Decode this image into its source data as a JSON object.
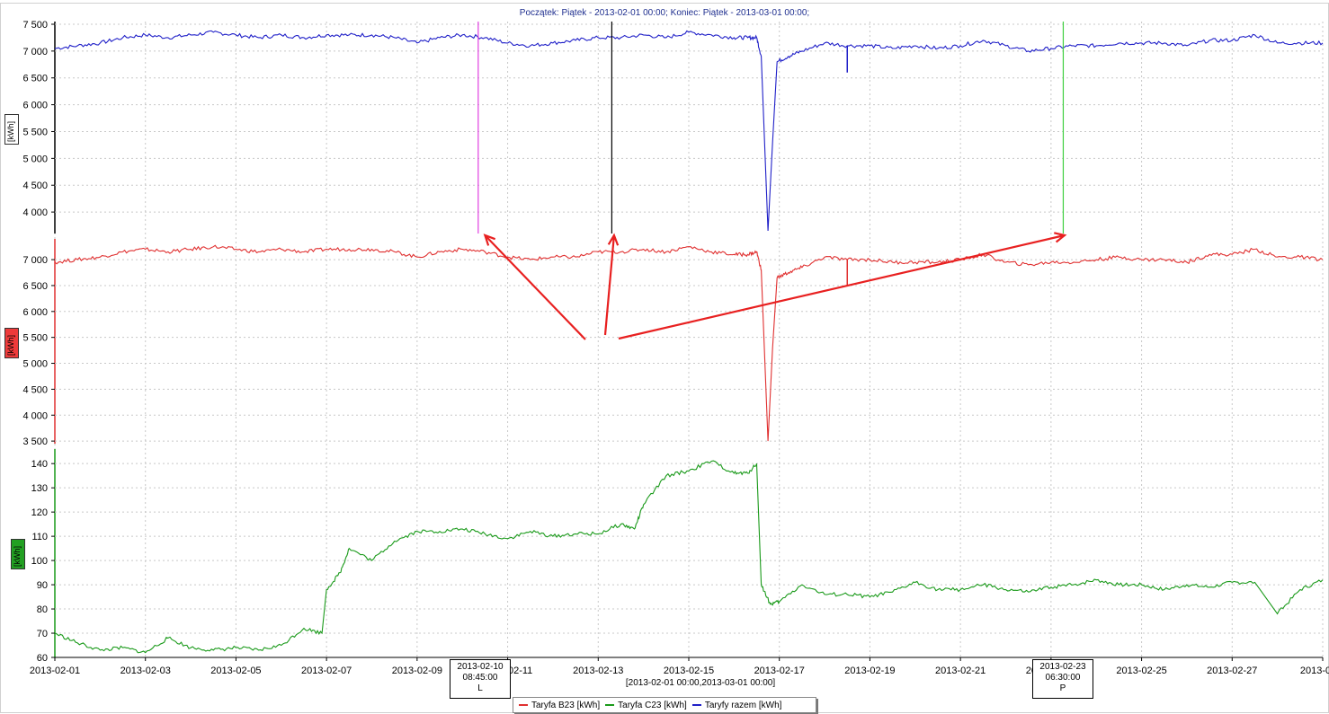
{
  "header": {
    "title": "Początek: Piątek - 2013-02-01 00:00; Koniec: Piątek - 2013-03-01 00:00;"
  },
  "x_axis": {
    "tick_labels": [
      "2013-02-01",
      "2013-02-03",
      "2013-02-05",
      "2013-02-07",
      "2013-02-09",
      "2013-02-11",
      "2013-02-13",
      "2013-02-15",
      "2013-02-17",
      "2013-02-19",
      "2013-02-21",
      "2013-02-23",
      "2013-02-25",
      "2013-02-27",
      "2013-03-0"
    ],
    "range_label": "[2013-02-01 00:00,2013-03-01 00:00]"
  },
  "cursors": [
    {
      "date": "2013-02-10",
      "time": "08:45:00",
      "tag": "L"
    },
    {
      "date": "2013-02-23",
      "time": "06:30:00",
      "tag": "P"
    }
  ],
  "legend": {
    "items": [
      {
        "label": "Taryfa B23 [kWh]",
        "color": "#e03030"
      },
      {
        "label": "Taryfa C23 [kWh]",
        "color": "#1a9a1a"
      },
      {
        "label": "Taryfy razem [kWh]",
        "color": "#2020c8"
      }
    ]
  },
  "colors": {
    "blue": "#2020c8",
    "red": "#e03030",
    "green": "#1a9a1a",
    "grid": "#c8c8c8",
    "magenta_marker": "#e040e0",
    "black_marker": "#000000",
    "green_marker": "#40d040",
    "arrow": "#e82020"
  },
  "chart_data": [
    {
      "type": "line",
      "panel": "top",
      "ylabel": "[kWh]",
      "ylim": [
        3600,
        7550
      ],
      "yticks": [
        "7 500",
        "7 000",
        "6 500",
        "6 000",
        "5 500",
        "5 000",
        "4 500",
        "4 000"
      ],
      "xlim_days": [
        0,
        28
      ],
      "x_start": "2013-02-01",
      "series": [
        {
          "name": "Taryfy razem [kWh]",
          "color": "#2020c8",
          "points": [
            [
              0,
              7050
            ],
            [
              0.5,
              7100
            ],
            [
              1,
              7150
            ],
            [
              1.5,
              7250
            ],
            [
              2,
              7300
            ],
            [
              2.5,
              7250
            ],
            [
              3,
              7300
            ],
            [
              3.5,
              7350
            ],
            [
              4,
              7300
            ],
            [
              4.5,
              7250
            ],
            [
              5,
              7300
            ],
            [
              5.5,
              7250
            ],
            [
              6,
              7300
            ],
            [
              6.5,
              7300
            ],
            [
              7,
              7300
            ],
            [
              7.5,
              7250
            ],
            [
              8,
              7150
            ],
            [
              8.5,
              7250
            ],
            [
              9,
              7300
            ],
            [
              9.5,
              7250
            ],
            [
              10,
              7150
            ],
            [
              10.5,
              7100
            ],
            [
              11,
              7150
            ],
            [
              11.5,
              7200
            ],
            [
              12,
              7250
            ],
            [
              12.5,
              7250
            ],
            [
              13,
              7300
            ],
            [
              13.5,
              7250
            ],
            [
              14,
              7350
            ],
            [
              14.5,
              7300
            ],
            [
              15,
              7250
            ],
            [
              15.3,
              7250
            ],
            [
              15.5,
              7250
            ],
            [
              15.6,
              6900
            ],
            [
              15.75,
              3650
            ],
            [
              15.85,
              5300
            ],
            [
              15.95,
              6800
            ],
            [
              16.2,
              6900
            ],
            [
              16.5,
              7000
            ],
            [
              17,
              7150
            ],
            [
              17.5,
              7100
            ],
            [
              18,
              7100
            ],
            [
              18.5,
              7050
            ],
            [
              19,
              7100
            ],
            [
              19.5,
              7050
            ],
            [
              20,
              7100
            ],
            [
              20.5,
              7200
            ],
            [
              21,
              7100
            ],
            [
              21.5,
              7000
            ],
            [
              22,
              7050
            ],
            [
              22.5,
              7100
            ],
            [
              23,
              7100
            ],
            [
              23.5,
              7150
            ],
            [
              24,
              7150
            ],
            [
              24.5,
              7150
            ],
            [
              25,
              7100
            ],
            [
              25.5,
              7200
            ],
            [
              26,
              7200
            ],
            [
              26.5,
              7300
            ],
            [
              27,
              7150
            ],
            [
              27.5,
              7150
            ],
            [
              28,
              7150
            ]
          ]
        }
      ],
      "spikes": [
        {
          "x": 17.5,
          "y_low": 6600
        }
      ]
    },
    {
      "type": "line",
      "panel": "middle",
      "ylabel": "[kWh]",
      "ylim": [
        3450,
        7400
      ],
      "yticks": [
        "7 000",
        "6 500",
        "6 000",
        "5 500",
        "5 000",
        "4 500",
        "4 000",
        "3 500"
      ],
      "xlim_days": [
        0,
        28
      ],
      "x_start": "2013-02-01",
      "series": [
        {
          "name": "Taryfa B23 [kWh]",
          "color": "#e03030",
          "points": [
            [
              0,
              6950
            ],
            [
              0.5,
              7000
            ],
            [
              1,
              7050
            ],
            [
              1.5,
              7150
            ],
            [
              2,
              7200
            ],
            [
              2.5,
              7150
            ],
            [
              3,
              7200
            ],
            [
              3.5,
              7250
            ],
            [
              4,
              7200
            ],
            [
              4.5,
              7150
            ],
            [
              5,
              7200
            ],
            [
              5.5,
              7150
            ],
            [
              6,
              7200
            ],
            [
              6.5,
              7200
            ],
            [
              7,
              7200
            ],
            [
              7.5,
              7150
            ],
            [
              8,
              7050
            ],
            [
              8.5,
              7150
            ],
            [
              9,
              7200
            ],
            [
              9.5,
              7150
            ],
            [
              10,
              7050
            ],
            [
              10.5,
              7000
            ],
            [
              11,
              7050
            ],
            [
              11.5,
              7050
            ],
            [
              12,
              7150
            ],
            [
              12.5,
              7150
            ],
            [
              13,
              7200
            ],
            [
              13.5,
              7150
            ],
            [
              14,
              7250
            ],
            [
              14.5,
              7150
            ],
            [
              15,
              7100
            ],
            [
              15.3,
              7100
            ],
            [
              15.5,
              7150
            ],
            [
              15.6,
              6800
            ],
            [
              15.75,
              3500
            ],
            [
              15.85,
              5300
            ],
            [
              15.95,
              6650
            ],
            [
              16.2,
              6750
            ],
            [
              16.5,
              6850
            ],
            [
              17,
              7050
            ],
            [
              17.5,
              7000
            ],
            [
              18,
              7000
            ],
            [
              18.5,
              6950
            ],
            [
              19,
              6950
            ],
            [
              19.5,
              6950
            ],
            [
              20,
              7000
            ],
            [
              20.5,
              7100
            ],
            [
              21,
              6950
            ],
            [
              21.5,
              6900
            ],
            [
              22,
              6950
            ],
            [
              22.5,
              6950
            ],
            [
              23,
              7000
            ],
            [
              23.5,
              7050
            ],
            [
              24,
              7000
            ],
            [
              24.5,
              7000
            ],
            [
              25,
              6950
            ],
            [
              25.5,
              7100
            ],
            [
              26,
              7100
            ],
            [
              26.5,
              7200
            ],
            [
              27,
              7050
            ],
            [
              27.5,
              7050
            ],
            [
              28,
              7000
            ]
          ]
        }
      ],
      "spikes": [
        {
          "x": 17.5,
          "y_low": 6500
        }
      ]
    },
    {
      "type": "line",
      "panel": "bottom",
      "ylabel": "[kWh]",
      "ylim": [
        60,
        146
      ],
      "yticks": [
        "140",
        "130",
        "120",
        "110",
        "100",
        "90",
        "80",
        "70",
        "60"
      ],
      "xlim_days": [
        0,
        28
      ],
      "x_start": "2013-02-01",
      "series": [
        {
          "name": "Taryfa C23 [kWh]",
          "color": "#1a9a1a",
          "points": [
            [
              0,
              70
            ],
            [
              0.5,
              66
            ],
            [
              1,
              63
            ],
            [
              1.5,
              64
            ],
            [
              2,
              62
            ],
            [
              2.5,
              68
            ],
            [
              3,
              64
            ],
            [
              3.5,
              63
            ],
            [
              4,
              64
            ],
            [
              4.5,
              63
            ],
            [
              5,
              65
            ],
            [
              5.5,
              72
            ],
            [
              5.9,
              70
            ],
            [
              6,
              88
            ],
            [
              6.3,
              95
            ],
            [
              6.5,
              105
            ],
            [
              7,
              100
            ],
            [
              7.5,
              108
            ],
            [
              8,
              112
            ],
            [
              8.5,
              112
            ],
            [
              9,
              113
            ],
            [
              9.5,
              111
            ],
            [
              10,
              109
            ],
            [
              10.5,
              112
            ],
            [
              11,
              110
            ],
            [
              11.5,
              111
            ],
            [
              12,
              111
            ],
            [
              12.5,
              115
            ],
            [
              12.8,
              113
            ],
            [
              13,
              123
            ],
            [
              13.5,
              135
            ],
            [
              14,
              137
            ],
            [
              14.5,
              141
            ],
            [
              15,
              136
            ],
            [
              15.3,
              136
            ],
            [
              15.5,
              140
            ],
            [
              15.6,
              90
            ],
            [
              15.8,
              82
            ],
            [
              16,
              83
            ],
            [
              16.5,
              90
            ],
            [
              17,
              86
            ],
            [
              17.5,
              86
            ],
            [
              18,
              85
            ],
            [
              18.5,
              87
            ],
            [
              19,
              91
            ],
            [
              19.5,
              88
            ],
            [
              20,
              88
            ],
            [
              20.5,
              90
            ],
            [
              21,
              88
            ],
            [
              21.5,
              87
            ],
            [
              22,
              89
            ],
            [
              22.5,
              90
            ],
            [
              23,
              92
            ],
            [
              23.5,
              90
            ],
            [
              24,
              90
            ],
            [
              24.5,
              88
            ],
            [
              25,
              90
            ],
            [
              25.5,
              89
            ],
            [
              26,
              91
            ],
            [
              26.5,
              91
            ],
            [
              27,
              78
            ],
            [
              27.5,
              88
            ],
            [
              28,
              92
            ]
          ]
        }
      ],
      "spikes": []
    }
  ],
  "markers": [
    {
      "x_day": 9.35,
      "color": "#e040e0"
    },
    {
      "x_day": 12.3,
      "color": "#000000"
    },
    {
      "x_day": 22.27,
      "color": "#40d040"
    }
  ],
  "arrows": [
    {
      "from_day": 11.7,
      "from_y": 7400,
      "to_day": 9.5,
      "to_y": 7800
    },
    {
      "from_day": 12.0,
      "from_y": 7400,
      "to_day": 12.35,
      "to_y": 7800
    },
    {
      "from_day": 12.3,
      "from_y": 7400,
      "to_day": 22.3,
      "to_y": 7800
    }
  ]
}
